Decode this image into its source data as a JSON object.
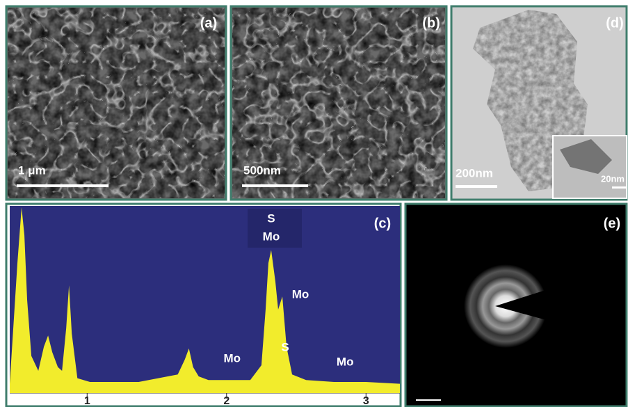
{
  "panels": [
    {
      "label": "(a)",
      "scale_bar": "1 μm"
    },
    {
      "label": "(b)",
      "scale_bar": "500nm"
    },
    {
      "label": "(d)",
      "scale_bar": "200nm",
      "inset_scale_bar": "20nm"
    },
    {
      "label": "(c)"
    },
    {
      "label": "(e)"
    }
  ],
  "chart_data": {
    "type": "area",
    "color": "#f2ec2c",
    "x": [
      0.445,
      0.5,
      0.53,
      0.55,
      0.57,
      0.6,
      0.65,
      0.69,
      0.72,
      0.75,
      0.79,
      0.82,
      0.85,
      0.87,
      0.89,
      0.93,
      1.02,
      1.37,
      1.65,
      1.7,
      1.73,
      1.76,
      1.8,
      1.87,
      2.17,
      2.25,
      2.28,
      2.3,
      2.32,
      2.35,
      2.37,
      2.4,
      2.43,
      2.47,
      2.57,
      2.77,
      3.0,
      3.243
    ],
    "values": [
      5,
      70,
      100,
      85,
      50,
      20,
      12,
      25,
      31,
      22,
      14,
      12,
      35,
      58,
      32,
      8,
      6,
      6,
      10,
      18,
      24,
      14,
      9,
      7,
      7,
      15,
      45,
      70,
      77,
      60,
      45,
      52,
      25,
      10,
      7,
      6,
      6,
      5
    ],
    "xlim": [
      0.445,
      3.243
    ],
    "xticks": [
      1,
      2,
      3
    ],
    "ylim": [
      0,
      100
    ],
    "peak_labels": [
      {
        "text": "S",
        "x": 2.32
      },
      {
        "text": "Mo",
        "x": 2.32
      },
      {
        "text": "Mo",
        "x": 2.47
      },
      {
        "text": "S",
        "x": 2.47
      },
      {
        "text": "Mo",
        "x": 2.04
      },
      {
        "text": "Mo",
        "x": 2.85
      }
    ]
  }
}
